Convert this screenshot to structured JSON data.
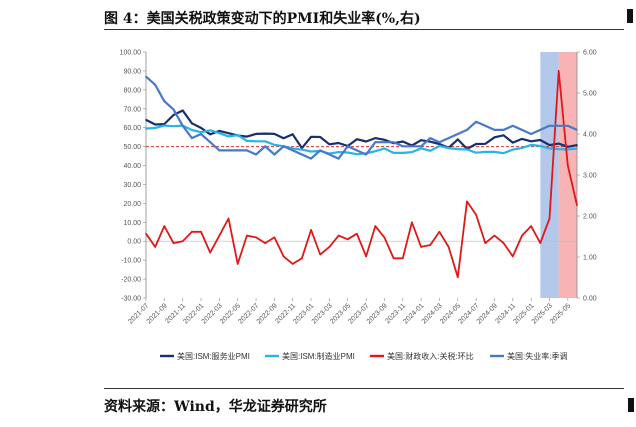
{
  "figure": {
    "title": "图 4：美国关税政策变动下的PMI和失业率(%,右)",
    "source": "资料来源：Wind，华龙证券研究所"
  },
  "chart_data": {
    "type": "line",
    "x": [
      "2021-07",
      "2021-08",
      "2021-09",
      "2021-10",
      "2021-11",
      "2021-12",
      "2022-01",
      "2022-02",
      "2022-03",
      "2022-04",
      "2022-05",
      "2022-06",
      "2022-07",
      "2022-08",
      "2022-09",
      "2022-10",
      "2022-11",
      "2022-12",
      "2023-01",
      "2023-02",
      "2023-03",
      "2023-04",
      "2023-05",
      "2023-06",
      "2023-07",
      "2023-08",
      "2023-09",
      "2023-10",
      "2023-11",
      "2023-12",
      "2024-01",
      "2024-02",
      "2024-03",
      "2024-04",
      "2024-05",
      "2024-06",
      "2024-07",
      "2024-08",
      "2024-09",
      "2024-10",
      "2024-11",
      "2024-12",
      "2025-01",
      "2025-02",
      "2025-03",
      "2025-04",
      "2025-05",
      "2025-06"
    ],
    "x_tick_labels": [
      "2021-07",
      "2021-09",
      "2021-11",
      "2022-01",
      "2022-03",
      "2022-05",
      "2022-07",
      "2022-09",
      "2022-11",
      "2023-01",
      "2023-03",
      "2023-05",
      "2023-07",
      "2023-09",
      "2023-11",
      "2024-01",
      "2024-03",
      "2024-05",
      "2024-07",
      "2024-09",
      "2024-11",
      "2025-01",
      "2025-03",
      "2025-05"
    ],
    "y_left": {
      "min": -30,
      "max": 100,
      "step": 10,
      "tick_labels": [
        "100.00",
        "90.00",
        "80.00",
        "70.00",
        "60.00",
        "50.00",
        "40.00",
        "30.00",
        "20.00",
        "10.00",
        "0.00",
        "-10.00",
        "-20.00",
        "-30.00"
      ]
    },
    "y_right": {
      "min": 0,
      "max": 6,
      "step": 1,
      "tick_labels": [
        "6.00",
        "5.00",
        "4.00",
        "3.00",
        "2.00",
        "1.00",
        "0.00"
      ]
    },
    "reference_line": {
      "value": 50,
      "axis": "left",
      "color": "#e03030",
      "style": "dashed"
    },
    "shaded_regions": [
      {
        "from": "2025-02",
        "to": "2025-04",
        "color": "#b4c8ec"
      },
      {
        "from": "2025-04",
        "to": "2025-06",
        "color": "#f8b4b4"
      }
    ],
    "series": [
      {
        "name": "美国:ISM:服务业PMI",
        "axis": "left",
        "color": "#1a2f6b",
        "values": [
          64.1,
          61.7,
          61.9,
          66.7,
          69.1,
          62.3,
          59.9,
          56.5,
          58.3,
          57.1,
          55.9,
          55.3,
          56.7,
          56.9,
          56.7,
          54.4,
          56.5,
          49.2,
          55.2,
          55.1,
          51.2,
          51.9,
          50.3,
          53.9,
          52.7,
          54.5,
          53.6,
          51.8,
          52.7,
          50.6,
          53.4,
          52.6,
          51.4,
          49.4,
          53.8,
          48.8,
          51.4,
          51.5,
          54.9,
          56.0,
          52.1,
          54.1,
          52.8,
          53.5,
          50.8,
          51.6,
          49.9,
          50.8
        ]
      },
      {
        "name": "美国:ISM:制造业PMI",
        "axis": "left",
        "color": "#28b4e6",
        "values": [
          59.5,
          59.9,
          61.1,
          60.8,
          61.1,
          58.8,
          57.6,
          58.6,
          57.1,
          55.4,
          56.1,
          53.0,
          52.8,
          52.8,
          50.9,
          50.2,
          49.0,
          48.4,
          47.4,
          47.7,
          46.3,
          47.1,
          46.9,
          46.0,
          46.4,
          47.6,
          49.0,
          46.7,
          46.7,
          47.1,
          49.1,
          47.8,
          50.3,
          49.2,
          48.7,
          48.5,
          46.8,
          47.2,
          47.2,
          46.5,
          48.4,
          49.3,
          50.9,
          50.3,
          49.0,
          48.7,
          48.5,
          49.0
        ]
      },
      {
        "name": "美国:财政收入:关税:环比",
        "axis": "left",
        "color": "#e01818",
        "values": [
          4.0,
          -3.0,
          8.0,
          -1.0,
          0.0,
          5.0,
          5.0,
          -6.0,
          3.0,
          12.0,
          -12.0,
          3.0,
          2.0,
          -1.0,
          2.0,
          -8.0,
          -12.0,
          -9.0,
          6.0,
          -7.0,
          -3.0,
          3.0,
          1.0,
          4.0,
          -8.0,
          8.0,
          2.0,
          -9.0,
          -9.0,
          10.0,
          -3.0,
          -2.0,
          5.0,
          -3.0,
          -19.0,
          21.0,
          14.0,
          -1.0,
          3.0,
          -1.0,
          -8.0,
          3.0,
          8.0,
          -1.0,
          12.0,
          90.0,
          40.0,
          19.0
        ]
      },
      {
        "name": "美国:失业率:季调",
        "axis": "right",
        "color": "#4a78c8",
        "values": [
          5.4,
          5.2,
          4.8,
          4.6,
          4.2,
          3.9,
          4.0,
          3.8,
          3.6,
          3.6,
          3.6,
          3.6,
          3.5,
          3.7,
          3.5,
          3.7,
          3.6,
          3.5,
          3.4,
          3.6,
          3.5,
          3.4,
          3.7,
          3.6,
          3.5,
          3.8,
          3.8,
          3.8,
          3.7,
          3.7,
          3.7,
          3.9,
          3.8,
          3.9,
          4.0,
          4.1,
          4.3,
          4.2,
          4.1,
          4.1,
          4.2,
          4.1,
          4.0,
          4.1,
          4.2,
          4.2,
          4.2,
          4.1
        ]
      }
    ]
  }
}
